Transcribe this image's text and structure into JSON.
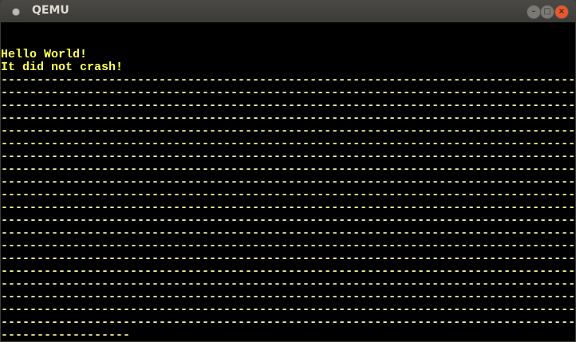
{
  "window": {
    "title": "QEMU",
    "buttons": [
      "minimize",
      "maximize",
      "close"
    ]
  },
  "screen": {
    "text_color": "#ffff55",
    "background": "#000000",
    "lines": [
      "",
      "",
      "Hello World!",
      "It did not crash!",
      "--------------------------------------------------------------------------------",
      "--------------------------------------------------------------------------------",
      "--------------------------------------------------------------------------------",
      "--------------------------------------------------------------------------------",
      "--------------------------------------------------------------------------------",
      "--------------------------------------------------------------------------------",
      "--------------------------------------------------------------------------------",
      "--------------------------------------------------------------------------------",
      "--------------------------------------------------------------------------------",
      "--------------------------------------------------------------------------------",
      "--------------------------------------------------------------------------------",
      "--------------------------------------------------------------------------------",
      "--------------------------------------------------------------------------------",
      "--------------------------------------------------------------------------------",
      "--------------------------------------------------------------------------------",
      "--------------------------------------------------------------------------------",
      "--------------------------------------------------------------------------------",
      "--------------------------------------------------------------------------------",
      "--------------------------------------------------------------------------------",
      "--------------------------------------------------------------------------------",
      "------------------"
    ]
  }
}
